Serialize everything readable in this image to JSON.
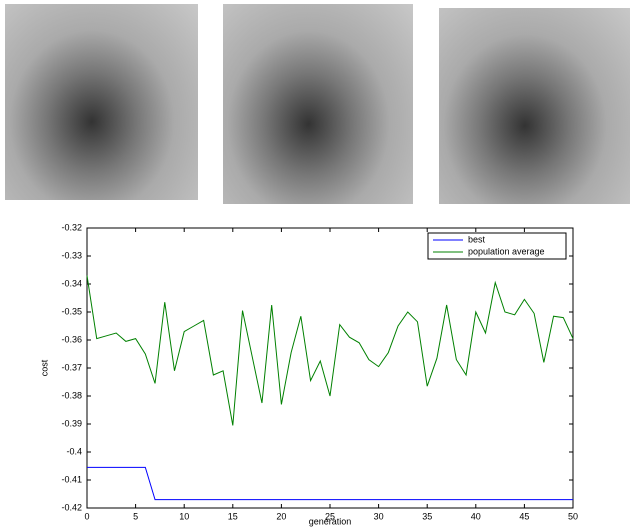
{
  "chart_data": {
    "type": "line",
    "x": [
      0,
      1,
      2,
      3,
      4,
      5,
      6,
      7,
      8,
      9,
      10,
      11,
      12,
      13,
      14,
      15,
      16,
      17,
      18,
      19,
      20,
      21,
      22,
      23,
      24,
      25,
      26,
      27,
      28,
      29,
      30,
      31,
      32,
      33,
      34,
      35,
      36,
      37,
      38,
      39,
      40,
      41,
      42,
      43,
      44,
      45,
      46,
      47,
      48,
      49,
      50
    ],
    "series": [
      {
        "name": "best",
        "color": "#0000ff",
        "values": [
          -0.4055,
          -0.4055,
          -0.4055,
          -0.4055,
          -0.4055,
          -0.4055,
          -0.4055,
          -0.417,
          -0.417,
          -0.417,
          -0.417,
          -0.417,
          -0.417,
          -0.417,
          -0.417,
          -0.417,
          -0.417,
          -0.417,
          -0.417,
          -0.417,
          -0.417,
          -0.417,
          -0.417,
          -0.417,
          -0.417,
          -0.417,
          -0.417,
          -0.417,
          -0.417,
          -0.417,
          -0.417,
          -0.417,
          -0.417,
          -0.417,
          -0.417,
          -0.417,
          -0.417,
          -0.417,
          -0.417,
          -0.417,
          -0.417,
          -0.417,
          -0.417,
          -0.417,
          -0.417,
          -0.417,
          -0.417,
          -0.417,
          -0.417,
          -0.417,
          -0.417
        ]
      },
      {
        "name": "population average",
        "color": "#008000",
        "values": [
          -0.337,
          -0.3595,
          -0.3585,
          -0.3575,
          -0.3605,
          -0.3595,
          -0.365,
          -0.3755,
          -0.3465,
          -0.371,
          -0.357,
          -0.355,
          -0.353,
          -0.3725,
          -0.371,
          -0.3905,
          -0.3495,
          -0.366,
          -0.3825,
          -0.3475,
          -0.383,
          -0.3645,
          -0.3515,
          -0.3745,
          -0.3675,
          -0.38,
          -0.3545,
          -0.359,
          -0.361,
          -0.367,
          -0.3695,
          -0.3645,
          -0.355,
          -0.35,
          -0.3535,
          -0.3765,
          -0.3665,
          -0.3475,
          -0.367,
          -0.3725,
          -0.35,
          -0.3575,
          -0.3395,
          -0.35,
          -0.351,
          -0.3455,
          -0.3505,
          -0.368,
          -0.3515,
          -0.352,
          -0.3595
        ]
      }
    ],
    "xlabel": "generation",
    "ylabel": "cost",
    "xlim": [
      0,
      50
    ],
    "xticks": [
      0,
      5,
      10,
      15,
      20,
      25,
      30,
      35,
      40,
      45,
      50
    ],
    "ylim": [
      -0.42,
      -0.32
    ],
    "yticks": [
      -0.42,
      -0.41,
      -0.4,
      -0.39,
      -0.38,
      -0.37,
      -0.36,
      -0.35,
      -0.34,
      -0.33,
      -0.32
    ],
    "legend": "top-right"
  }
}
